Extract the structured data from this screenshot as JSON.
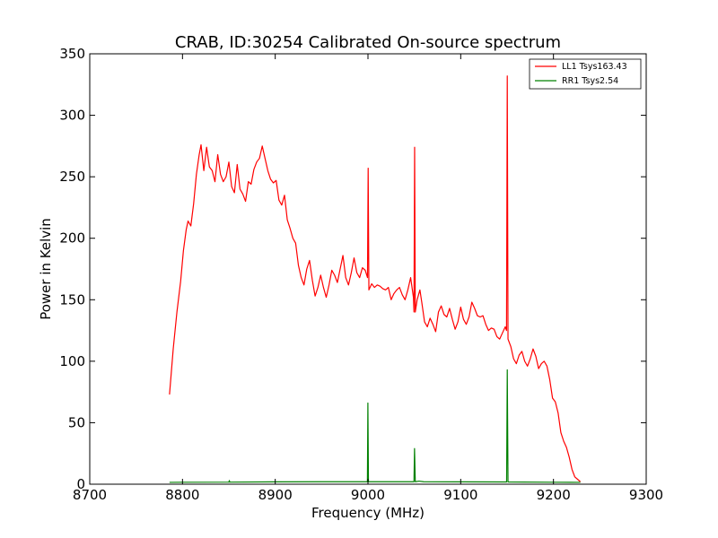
{
  "chart_data": {
    "type": "line",
    "title": "CRAB, ID:30254 Calibrated On-source spectrum",
    "xlabel": "Frequency (MHz)",
    "ylabel": "Power in Kelvin",
    "xlim": [
      8700,
      9300
    ],
    "ylim": [
      0,
      350
    ],
    "xticks": [
      8700,
      8800,
      8900,
      9000,
      9100,
      9200,
      9300
    ],
    "yticks": [
      0,
      50,
      100,
      150,
      200,
      250,
      300,
      350
    ],
    "grid": false,
    "legend_position": "top-right",
    "series": [
      {
        "name": "LL1 Tsys163.43",
        "color": "#ff0000",
        "points": [
          [
            8786,
            73
          ],
          [
            8790,
            110
          ],
          [
            8794,
            140
          ],
          [
            8798,
            165
          ],
          [
            8801,
            190
          ],
          [
            8804,
            207
          ],
          [
            8806,
            214
          ],
          [
            8809,
            210
          ],
          [
            8812,
            228
          ],
          [
            8815,
            252
          ],
          [
            8818,
            268
          ],
          [
            8820,
            276
          ],
          [
            8823,
            255
          ],
          [
            8826,
            274
          ],
          [
            8829,
            258
          ],
          [
            8832,
            255
          ],
          [
            8835,
            246
          ],
          [
            8838,
            268
          ],
          [
            8841,
            252
          ],
          [
            8844,
            246
          ],
          [
            8847,
            250
          ],
          [
            8850,
            262
          ],
          [
            8853,
            242
          ],
          [
            8856,
            237
          ],
          [
            8859,
            260
          ],
          [
            8862,
            240
          ],
          [
            8865,
            236
          ],
          [
            8868,
            230
          ],
          [
            8871,
            246
          ],
          [
            8874,
            244
          ],
          [
            8877,
            256
          ],
          [
            8880,
            262
          ],
          [
            8883,
            265
          ],
          [
            8886,
            275
          ],
          [
            8889,
            265
          ],
          [
            8892,
            255
          ],
          [
            8895,
            248
          ],
          [
            8898,
            245
          ],
          [
            8901,
            247
          ],
          [
            8904,
            231
          ],
          [
            8907,
            227
          ],
          [
            8910,
            235
          ],
          [
            8913,
            215
          ],
          [
            8916,
            208
          ],
          [
            8919,
            200
          ],
          [
            8922,
            196
          ],
          [
            8925,
            178
          ],
          [
            8928,
            168
          ],
          [
            8931,
            162
          ],
          [
            8934,
            175
          ],
          [
            8937,
            182
          ],
          [
            8940,
            166
          ],
          [
            8943,
            153
          ],
          [
            8946,
            160
          ],
          [
            8949,
            170
          ],
          [
            8952,
            160
          ],
          [
            8955,
            152
          ],
          [
            8958,
            162
          ],
          [
            8961,
            174
          ],
          [
            8964,
            170
          ],
          [
            8967,
            164
          ],
          [
            8970,
            175
          ],
          [
            8973,
            186
          ],
          [
            8976,
            168
          ],
          [
            8979,
            162
          ],
          [
            8982,
            172
          ],
          [
            8985,
            184
          ],
          [
            8988,
            172
          ],
          [
            8991,
            168
          ],
          [
            8994,
            176
          ],
          [
            8997,
            174
          ],
          [
            8999.5,
            168
          ],
          [
            9000.2,
            257
          ],
          [
            9001,
            158
          ],
          [
            9004,
            163
          ],
          [
            9007,
            160
          ],
          [
            9010,
            162
          ],
          [
            9013,
            161
          ],
          [
            9016,
            159
          ],
          [
            9019,
            158
          ],
          [
            9022,
            160
          ],
          [
            9025,
            150
          ],
          [
            9028,
            155
          ],
          [
            9031,
            158
          ],
          [
            9034,
            160
          ],
          [
            9037,
            154
          ],
          [
            9040,
            150
          ],
          [
            9043,
            158
          ],
          [
            9046,
            168
          ],
          [
            9049,
            152
          ],
          [
            9049.6,
            140
          ],
          [
            9050.3,
            274
          ],
          [
            9051,
            140
          ],
          [
            9053,
            150
          ],
          [
            9056,
            158
          ],
          [
            9058,
            148
          ],
          [
            9061,
            132
          ],
          [
            9064,
            128
          ],
          [
            9067,
            135
          ],
          [
            9070,
            130
          ],
          [
            9073,
            124
          ],
          [
            9076,
            140
          ],
          [
            9079,
            145
          ],
          [
            9082,
            138
          ],
          [
            9085,
            136
          ],
          [
            9088,
            143
          ],
          [
            9091,
            134
          ],
          [
            9094,
            126
          ],
          [
            9097,
            132
          ],
          [
            9100,
            144
          ],
          [
            9103,
            134
          ],
          [
            9106,
            130
          ],
          [
            9109,
            136
          ],
          [
            9112,
            148
          ],
          [
            9115,
            143
          ],
          [
            9118,
            137
          ],
          [
            9121,
            136
          ],
          [
            9124,
            137
          ],
          [
            9127,
            130
          ],
          [
            9130,
            125
          ],
          [
            9133,
            127
          ],
          [
            9136,
            126
          ],
          [
            9139,
            120
          ],
          [
            9142,
            118
          ],
          [
            9145,
            123
          ],
          [
            9148,
            128
          ],
          [
            9149.4,
            125
          ],
          [
            9150.2,
            332
          ],
          [
            9151,
            118
          ],
          [
            9154,
            112
          ],
          [
            9157,
            102
          ],
          [
            9160,
            98
          ],
          [
            9163,
            105
          ],
          [
            9166,
            108
          ],
          [
            9169,
            100
          ],
          [
            9172,
            96
          ],
          [
            9175,
            102
          ],
          [
            9178,
            110
          ],
          [
            9181,
            104
          ],
          [
            9184,
            94
          ],
          [
            9187,
            98
          ],
          [
            9190,
            100
          ],
          [
            9193,
            96
          ],
          [
            9196,
            85
          ],
          [
            9199,
            70
          ],
          [
            9202,
            67
          ],
          [
            9205,
            58
          ],
          [
            9208,
            42
          ],
          [
            9211,
            35
          ],
          [
            9214,
            30
          ],
          [
            9217,
            22
          ],
          [
            9220,
            12
          ],
          [
            9223,
            6
          ],
          [
            9226,
            4
          ],
          [
            9229,
            2
          ]
        ]
      },
      {
        "name": "RR1 Tsys2.54",
        "color": "#008000",
        "points": [
          [
            8786,
            1.5
          ],
          [
            8800,
            1.6
          ],
          [
            8850,
            1.7
          ],
          [
            8850.5,
            3
          ],
          [
            8851,
            1.7
          ],
          [
            8900,
            1.9
          ],
          [
            8950,
            2.0
          ],
          [
            8999.4,
            2.0
          ],
          [
            8999.9,
            66
          ],
          [
            9000.5,
            2.0
          ],
          [
            9049.6,
            2.0
          ],
          [
            9050.2,
            29
          ],
          [
            9051,
            2.0
          ],
          [
            9055,
            2.5
          ],
          [
            9060,
            2.0
          ],
          [
            9100,
            1.9
          ],
          [
            9149.5,
            1.8
          ],
          [
            9150.2,
            93
          ],
          [
            9151,
            1.8
          ],
          [
            9200,
            1.6
          ],
          [
            9229,
            1.5
          ]
        ]
      }
    ]
  }
}
